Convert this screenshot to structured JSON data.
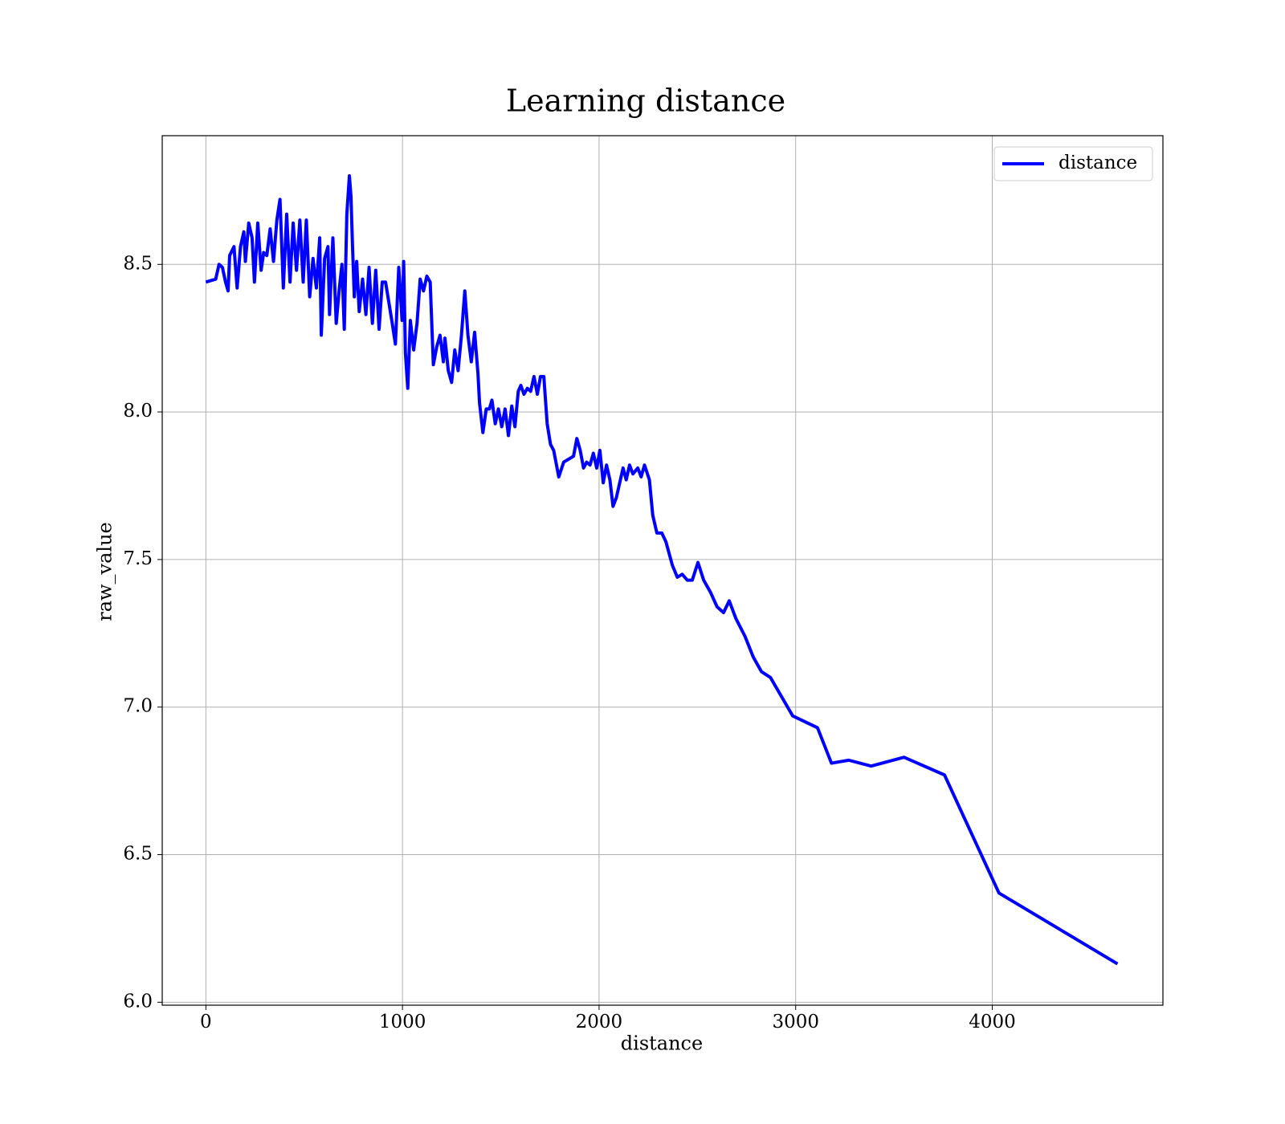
{
  "chart_data": {
    "type": "line",
    "title": "Learning distance",
    "x_label": "distance",
    "y_label": "raw_value",
    "xlim": [
      -222,
      4868
    ],
    "ylim": [
      5.99,
      8.936
    ],
    "xticks": [
      0,
      1000,
      2000,
      3000,
      4000
    ],
    "yticks": [
      {
        "value": 6.0,
        "label": "6.0"
      },
      6.5,
      {
        "value": 7.0,
        "label": "7.0"
      },
      7.5,
      {
        "value": 8.0,
        "label": "8.0"
      },
      8.5
    ],
    "grid": true,
    "legend": "upper right",
    "x": [
      0,
      50,
      67,
      84,
      100,
      113,
      121,
      143,
      159,
      176,
      193,
      201,
      218,
      235,
      247,
      264,
      281,
      294,
      310,
      327,
      344,
      361,
      377,
      394,
      411,
      428,
      444,
      461,
      478,
      495,
      511,
      528,
      545,
      562,
      579,
      587,
      604,
      621,
      629,
      646,
      663,
      679,
      692,
      704,
      717,
      730,
      738,
      746,
      755,
      767,
      780,
      797,
      814,
      830,
      847,
      864,
      881,
      897,
      914,
      931,
      948,
      964,
      981,
      998,
      1006,
      1015,
      1027,
      1040,
      1057,
      1074,
      1090,
      1107,
      1124,
      1141,
      1157,
      1174,
      1191,
      1208,
      1216,
      1233,
      1250,
      1266,
      1283,
      1300,
      1317,
      1333,
      1350,
      1367,
      1384,
      1392,
      1409,
      1426,
      1442,
      1455,
      1472,
      1488,
      1505,
      1522,
      1539,
      1556,
      1572,
      1589,
      1602,
      1618,
      1635,
      1652,
      1669,
      1686,
      1702,
      1719,
      1736,
      1753,
      1769,
      1795,
      1820,
      1845,
      1870,
      1887,
      1904,
      1921,
      1937,
      1954,
      1971,
      1988,
      2004,
      2021,
      2038,
      2055,
      2071,
      2088,
      2105,
      2122,
      2138,
      2155,
      2172,
      2197,
      2214,
      2231,
      2256,
      2273,
      2294,
      2319,
      2340,
      2373,
      2398,
      2423,
      2449,
      2474,
      2503,
      2532,
      2566,
      2600,
      2633,
      2662,
      2696,
      2742,
      2784,
      2826,
      2872,
      2985,
      3111,
      3182,
      3270,
      3384,
      3551,
      3757,
      4034,
      4637
    ],
    "series": [
      {
        "name": "distance",
        "color": "#0000ff",
        "values": [
          8.44,
          8.45,
          8.5,
          8.49,
          8.44,
          8.41,
          8.53,
          8.56,
          8.42,
          8.56,
          8.61,
          8.51,
          8.64,
          8.59,
          8.44,
          8.64,
          8.48,
          8.54,
          8.53,
          8.62,
          8.51,
          8.65,
          8.72,
          8.42,
          8.67,
          8.44,
          8.64,
          8.48,
          8.65,
          8.44,
          8.65,
          8.39,
          8.52,
          8.42,
          8.59,
          8.26,
          8.52,
          8.56,
          8.33,
          8.59,
          8.3,
          8.42,
          8.5,
          8.28,
          8.67,
          8.8,
          8.73,
          8.56,
          8.39,
          8.51,
          8.34,
          8.45,
          8.33,
          8.49,
          8.3,
          8.48,
          8.28,
          8.44,
          8.44,
          8.37,
          8.3,
          8.23,
          8.49,
          8.31,
          8.51,
          8.2,
          8.08,
          8.31,
          8.21,
          8.3,
          8.45,
          8.41,
          8.46,
          8.44,
          8.16,
          8.22,
          8.26,
          8.17,
          8.25,
          8.14,
          8.1,
          8.21,
          8.14,
          8.26,
          8.41,
          8.26,
          8.17,
          8.27,
          8.13,
          8.03,
          7.93,
          8.01,
          8.01,
          8.04,
          7.96,
          8.01,
          7.95,
          8.01,
          7.92,
          8.02,
          7.95,
          8.07,
          8.09,
          8.06,
          8.08,
          8.07,
          8.12,
          8.06,
          8.12,
          8.12,
          7.96,
          7.89,
          7.87,
          7.78,
          7.83,
          7.84,
          7.85,
          7.91,
          7.87,
          7.81,
          7.83,
          7.82,
          7.86,
          7.81,
          7.87,
          7.76,
          7.82,
          7.77,
          7.68,
          7.71,
          7.76,
          7.81,
          7.77,
          7.82,
          7.79,
          7.81,
          7.78,
          7.82,
          7.77,
          7.65,
          7.59,
          7.59,
          7.56,
          7.48,
          7.44,
          7.45,
          7.43,
          7.43,
          7.49,
          7.43,
          7.39,
          7.34,
          7.32,
          7.36,
          7.3,
          7.24,
          7.17,
          7.12,
          7.1,
          6.97,
          6.93,
          6.81,
          6.82,
          6.8,
          6.83,
          6.77,
          6.37,
          6.13
        ]
      }
    ]
  }
}
